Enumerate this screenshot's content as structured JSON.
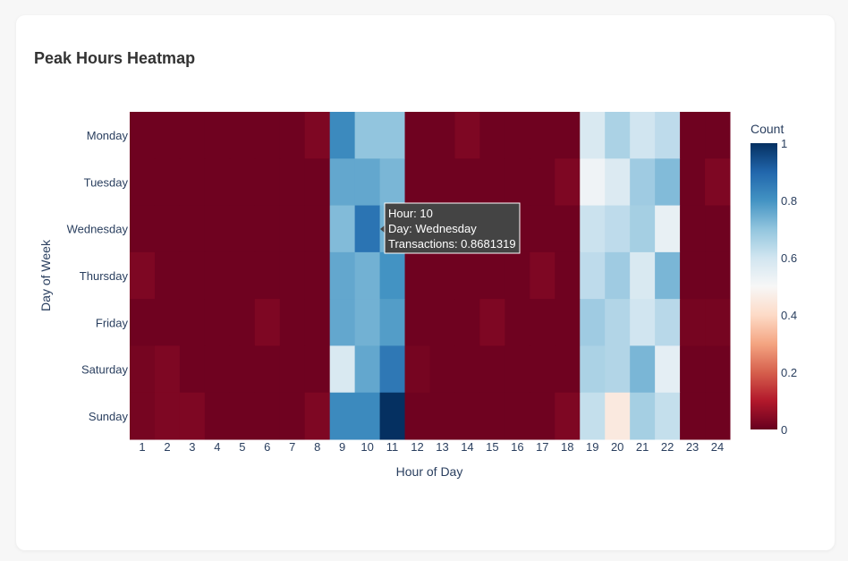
{
  "page": {
    "title": "Peak Hours Heatmap"
  },
  "chart_data": {
    "type": "heatmap",
    "xlabel": "Hour of Day",
    "ylabel": "Day of Week",
    "x": [
      1,
      2,
      3,
      4,
      5,
      6,
      7,
      8,
      9,
      10,
      11,
      12,
      13,
      14,
      15,
      16,
      17,
      18,
      19,
      20,
      21,
      22,
      23,
      24
    ],
    "y": [
      "Monday",
      "Tuesday",
      "Wednesday",
      "Thursday",
      "Friday",
      "Saturday",
      "Sunday"
    ],
    "colorbar": {
      "title": "Count",
      "min": 0,
      "max": 1,
      "ticks": [
        0,
        0.2,
        0.4,
        0.6,
        0.8,
        1
      ]
    },
    "colorscale": [
      "#67001f",
      "#b2182b",
      "#d6604d",
      "#f4a582",
      "#fddbc7",
      "#f7f7f7",
      "#d1e5f0",
      "#92c5de",
      "#4393c3",
      "#2166ac",
      "#053061"
    ],
    "z": [
      [
        0.01,
        0.01,
        0.01,
        0.01,
        0.01,
        0.01,
        0.01,
        0.03,
        0.82,
        0.7,
        0.7,
        0.01,
        0.01,
        0.03,
        0.01,
        0.01,
        0.01,
        0.01,
        0.58,
        0.66,
        0.6,
        0.63,
        0.01,
        0.01
      ],
      [
        0.01,
        0.01,
        0.01,
        0.01,
        0.01,
        0.01,
        0.01,
        0.01,
        0.76,
        0.76,
        0.73,
        0.01,
        0.01,
        0.01,
        0.01,
        0.01,
        0.01,
        0.03,
        0.52,
        0.57,
        0.68,
        0.72,
        0.01,
        0.03
      ],
      [
        0.01,
        0.01,
        0.01,
        0.01,
        0.01,
        0.01,
        0.01,
        0.01,
        0.72,
        0.87,
        0.74,
        0.01,
        0.01,
        0.01,
        0.01,
        0.01,
        0.01,
        0.01,
        0.61,
        0.63,
        0.67,
        0.54,
        0.01,
        0.01
      ],
      [
        0.03,
        0.01,
        0.01,
        0.01,
        0.01,
        0.01,
        0.01,
        0.01,
        0.76,
        0.74,
        0.8,
        0.01,
        0.01,
        0.01,
        0.01,
        0.01,
        0.03,
        0.01,
        0.63,
        0.68,
        0.58,
        0.73,
        0.01,
        0.01
      ],
      [
        0.01,
        0.01,
        0.01,
        0.01,
        0.01,
        0.03,
        0.01,
        0.01,
        0.76,
        0.74,
        0.78,
        0.01,
        0.01,
        0.01,
        0.03,
        0.01,
        0.01,
        0.01,
        0.68,
        0.65,
        0.6,
        0.64,
        0.02,
        0.02
      ],
      [
        0.02,
        0.03,
        0.01,
        0.01,
        0.01,
        0.01,
        0.01,
        0.01,
        0.58,
        0.76,
        0.86,
        0.02,
        0.01,
        0.01,
        0.01,
        0.01,
        0.01,
        0.01,
        0.66,
        0.65,
        0.73,
        0.55,
        0.01,
        0.01
      ],
      [
        0.02,
        0.03,
        0.03,
        0.01,
        0.01,
        0.01,
        0.01,
        0.03,
        0.82,
        0.82,
        1.0,
        0.01,
        0.01,
        0.01,
        0.01,
        0.01,
        0.01,
        0.03,
        0.62,
        0.45,
        0.67,
        0.62,
        0.01,
        0.01
      ]
    ]
  },
  "tooltip": {
    "lines": [
      "Hour: 10",
      "Day: Wednesday",
      "Transactions: 0.8681319"
    ]
  }
}
